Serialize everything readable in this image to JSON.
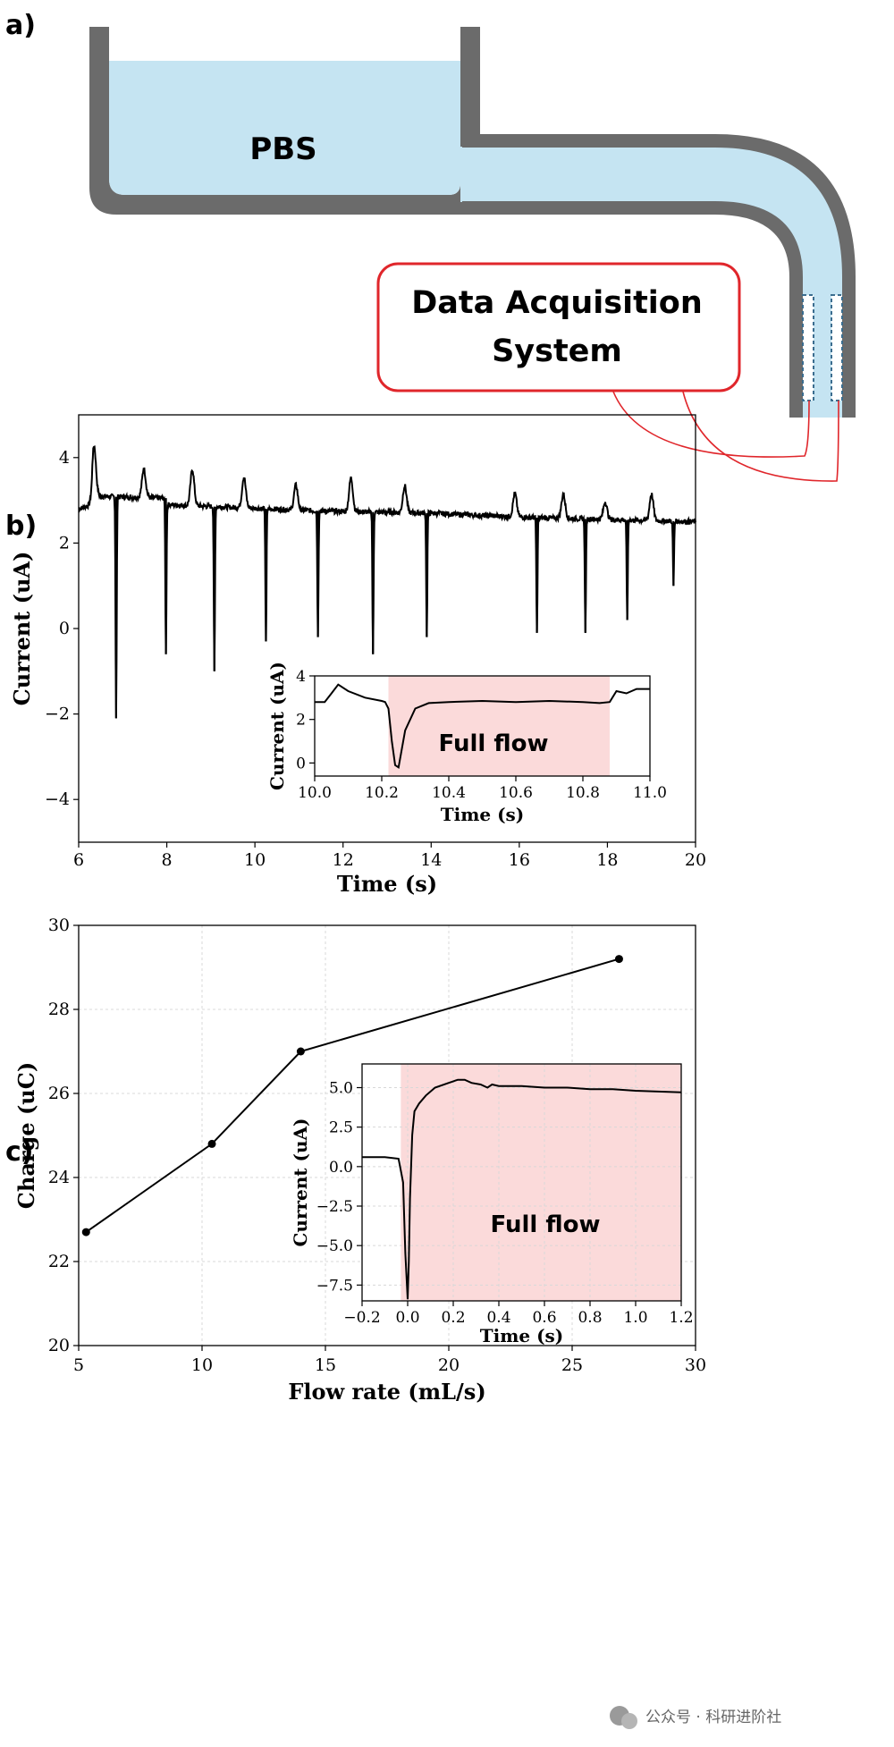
{
  "panels": {
    "a": "a)",
    "b": "b)",
    "c": "c)"
  },
  "diagram": {
    "reservoir_label": "PBS",
    "daq_label_line1": "Data Acquisition",
    "daq_label_line2": "System",
    "colors": {
      "liquid": "#c5e4f2",
      "wall": "#6b6b6b",
      "daq_border": "#e0262b",
      "wire": "#e0262b",
      "electrode": "#3b6d8f"
    }
  },
  "watermark": "公众号 · 科研进阶社",
  "chart_data": [
    {
      "id": "b-main",
      "type": "line",
      "title": "",
      "xlabel": "Time (s)",
      "ylabel": "Current (uA)",
      "xlim": [
        6,
        20
      ],
      "ylim": [
        -5,
        5
      ],
      "xticks": [
        6,
        8,
        10,
        12,
        14,
        16,
        18,
        20
      ],
      "yticks": [
        -4,
        -2,
        0,
        2,
        4
      ],
      "ytick_labels": [
        "−4",
        "−2",
        "0",
        "2",
        "4"
      ],
      "grid": false,
      "color": "#000000",
      "baseline_segments": [
        {
          "x0": 6.0,
          "x1": 6.3,
          "y0": 2.8,
          "y1": 2.9
        },
        {
          "x0": 6.3,
          "x1": 8.0,
          "y0": 3.1,
          "y1": 3.05
        },
        {
          "x0": 8.0,
          "x1": 11.5,
          "y0": 2.9,
          "y1": 2.75
        },
        {
          "x0": 11.5,
          "x1": 14.0,
          "y0": 2.75,
          "y1": 2.7
        },
        {
          "x0": 14.0,
          "x1": 16.2,
          "y0": 2.7,
          "y1": 2.6
        },
        {
          "x0": 16.2,
          "x1": 20.0,
          "y0": 2.6,
          "y1": 2.5
        }
      ],
      "spikes": [
        {
          "t": 6.85,
          "min": -2.1,
          "max": 4.4
        },
        {
          "t": 7.98,
          "min": -0.6,
          "max": 3.8
        },
        {
          "t": 9.08,
          "min": -1.0,
          "max": 3.8
        },
        {
          "t": 10.25,
          "min": -0.3,
          "max": 3.6
        },
        {
          "t": 11.43,
          "min": -0.2,
          "max": 3.4
        },
        {
          "t": 12.68,
          "min": -0.6,
          "max": 3.6
        },
        {
          "t": 13.9,
          "min": -0.2,
          "max": 3.4
        },
        {
          "t": 16.4,
          "min": -0.1,
          "max": 3.2
        },
        {
          "t": 17.5,
          "min": -0.1,
          "max": 3.2
        },
        {
          "t": 18.45,
          "min": 0.2,
          "max": 3.0
        },
        {
          "t": 19.5,
          "min": 1.0,
          "max": 3.2
        }
      ]
    },
    {
      "id": "b-inset",
      "type": "line",
      "xlabel": "Time (s)",
      "ylabel": "Current (uA)",
      "xlim": [
        10.0,
        11.0
      ],
      "ylim": [
        -0.6,
        4.0
      ],
      "xticks": [
        10.0,
        10.2,
        10.4,
        10.6,
        10.8,
        11.0
      ],
      "yticks": [
        0,
        2,
        4
      ],
      "shaded": {
        "from": 10.22,
        "to": 10.88,
        "color": "#fbdada"
      },
      "annotation": "Full flow",
      "color": "#000000",
      "x": [
        10.0,
        10.03,
        10.05,
        10.07,
        10.1,
        10.15,
        10.2,
        10.21,
        10.22,
        10.23,
        10.24,
        10.25,
        10.27,
        10.3,
        10.34,
        10.4,
        10.5,
        10.6,
        10.7,
        10.8,
        10.85,
        10.88,
        10.9,
        10.93,
        10.96,
        11.0
      ],
      "y": [
        2.8,
        2.8,
        3.2,
        3.6,
        3.3,
        3.0,
        2.85,
        2.8,
        2.5,
        1.0,
        -0.1,
        -0.2,
        1.5,
        2.5,
        2.75,
        2.8,
        2.85,
        2.8,
        2.85,
        2.8,
        2.75,
        2.8,
        3.3,
        3.2,
        3.4,
        3.4
      ]
    },
    {
      "id": "c-main",
      "type": "line",
      "title": "",
      "xlabel": "Flow rate (mL/s)",
      "ylabel": "Charge (uC)",
      "xlim": [
        5,
        30
      ],
      "ylim": [
        20,
        30
      ],
      "xticks": [
        5,
        10,
        15,
        20,
        25,
        30
      ],
      "yticks": [
        20,
        22,
        24,
        26,
        28,
        30
      ],
      "grid": true,
      "markers": true,
      "color": "#000000",
      "x": [
        5.3,
        10.4,
        14.0,
        26.9
      ],
      "y": [
        22.7,
        24.8,
        27.0,
        29.2
      ]
    },
    {
      "id": "c-inset",
      "type": "line",
      "xlabel": "Time (s)",
      "ylabel": "Current (uA)",
      "xlim": [
        -0.2,
        1.2
      ],
      "ylim": [
        -8.5,
        6.5
      ],
      "xticks": [
        -0.2,
        0.0,
        0.2,
        0.4,
        0.6,
        0.8,
        1.0,
        1.2
      ],
      "xtick_labels": [
        "−0.2",
        "0.0",
        "0.2",
        "0.4",
        "0.6",
        "0.8",
        "1.0",
        "1.2"
      ],
      "yticks": [
        -7.5,
        -5.0,
        -2.5,
        0.0,
        2.5,
        5.0
      ],
      "ytick_labels": [
        "−7.5",
        "−5.0",
        "−2.5",
        "0.0",
        "2.5",
        "5.0"
      ],
      "grid": true,
      "shaded": {
        "from": -0.03,
        "to": 1.2,
        "color": "#fbdada"
      },
      "annotation": "Full flow",
      "color": "#000000",
      "x": [
        -0.2,
        -0.1,
        -0.04,
        -0.02,
        -0.01,
        0.0,
        0.005,
        0.01,
        0.02,
        0.03,
        0.05,
        0.08,
        0.12,
        0.18,
        0.22,
        0.25,
        0.28,
        0.32,
        0.35,
        0.37,
        0.4,
        0.5,
        0.6,
        0.7,
        0.8,
        0.9,
        1.0,
        1.1,
        1.2
      ],
      "y": [
        0.6,
        0.6,
        0.5,
        -1.0,
        -5.5,
        -8.4,
        -6.0,
        -2.0,
        2.0,
        3.5,
        4.0,
        4.5,
        5.0,
        5.3,
        5.5,
        5.5,
        5.3,
        5.2,
        5.0,
        5.2,
        5.1,
        5.1,
        5.0,
        5.0,
        4.9,
        4.9,
        4.8,
        4.75,
        4.7
      ]
    }
  ]
}
